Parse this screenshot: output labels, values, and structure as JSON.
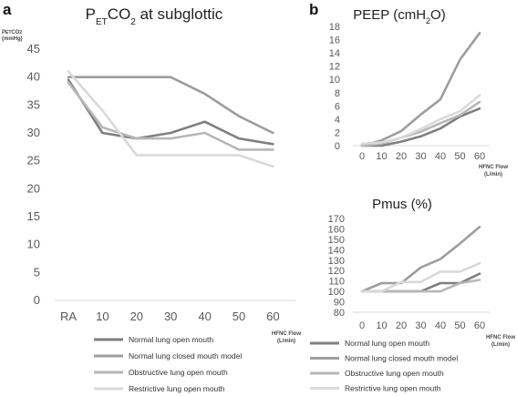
{
  "panels": {
    "a": "a",
    "b": "b"
  },
  "colors": {
    "normal_open": "#7f7f7f",
    "normal_closed": "#9d9d9d",
    "obstructive": "#b7b7b7",
    "restrictive": "#d9d9d9"
  },
  "chart_data": [
    {
      "type": "line",
      "title": "PETCO2 at subglottic",
      "title_parts": {
        "main": "P",
        "sub": "ET",
        "rest": "CO",
        "sub2": "2",
        "tail": " at subglottic"
      },
      "ylabel_lines": [
        "P",
        "ET",
        "CO",
        "2",
        "(mmHg)"
      ],
      "xlabel": "HFNC Flow (L/min)",
      "xlabel_lines": [
        "HFNC Flow",
        "(L/min)"
      ],
      "categories": [
        "RA",
        "10",
        "20",
        "30",
        "40",
        "50",
        "60"
      ],
      "ylim": [
        0,
        45
      ],
      "yticks": [
        0,
        5,
        10,
        15,
        20,
        25,
        30,
        35,
        40,
        45
      ],
      "grid": false,
      "legend_position": "bottom",
      "series": [
        {
          "name": "Normal lung open mouth",
          "color": "#7f7f7f",
          "values": [
            39.5,
            30,
            29,
            30,
            32,
            29,
            28
          ]
        },
        {
          "name": "Normal lung closed mouth model",
          "color": "#9d9d9d",
          "values": [
            40,
            40,
            40,
            40,
            37,
            33,
            30
          ]
        },
        {
          "name": "Obstructive lung open mouth",
          "color": "#b7b7b7",
          "values": [
            39,
            31,
            29,
            29,
            30,
            27,
            27
          ]
        },
        {
          "name": "Restrictive lung open mouth",
          "color": "#d9d9d9",
          "values": [
            41,
            34,
            26,
            26,
            26,
            26,
            24
          ]
        }
      ]
    },
    {
      "type": "line",
      "title": "PEEP (cmH2O)",
      "title_parts": {
        "main": "PEEP (cmH",
        "sub": "2",
        "rest": "O)"
      },
      "xlabel": "HFNC Flow (L/min)",
      "xlabel_lines": [
        "HFNC Flow",
        "(L/min)"
      ],
      "categories": [
        "0",
        "10",
        "20",
        "30",
        "40",
        "50",
        "60"
      ],
      "ylim": [
        0,
        18
      ],
      "yticks": [
        0,
        2,
        4,
        6,
        8,
        10,
        12,
        14,
        16,
        18
      ],
      "grid": false,
      "series": [
        {
          "name": "Normal lung open mouth",
          "color": "#7f7f7f",
          "values": [
            0,
            0,
            0.6,
            1.4,
            2.6,
            4.4,
            5.6
          ]
        },
        {
          "name": "Normal lung closed mouth model",
          "color": "#9d9d9d",
          "values": [
            0,
            0.8,
            2.2,
            4.7,
            7,
            13,
            17
          ]
        },
        {
          "name": "Obstructive lung open mouth",
          "color": "#b7b7b7",
          "values": [
            0,
            0.3,
            1.2,
            2.1,
            3.4,
            4.6,
            6.6
          ]
        },
        {
          "name": "Restrictive lung open mouth",
          "color": "#d9d9d9",
          "values": [
            0.3,
            0.5,
            1.2,
            2.5,
            4,
            5.2,
            7.6
          ]
        }
      ]
    },
    {
      "type": "line",
      "title": "Pmus (%)",
      "xlabel": "HFNC Flow (L/min)",
      "xlabel_lines": [
        "HFNC Flow",
        "(L/min)"
      ],
      "categories": [
        "0",
        "10",
        "20",
        "30",
        "40",
        "50",
        "60"
      ],
      "ylim": [
        80,
        170
      ],
      "yticks": [
        80,
        90,
        100,
        110,
        120,
        130,
        140,
        150,
        160,
        170
      ],
      "grid": false,
      "legend_position": "bottom",
      "series": [
        {
          "name": "Normal lung open mouth",
          "color": "#7f7f7f",
          "values": [
            100,
            100,
            100,
            100,
            108,
            108,
            117
          ]
        },
        {
          "name": "Normal lung closed mouth model",
          "color": "#9d9d9d",
          "values": [
            100,
            108,
            108,
            123,
            131,
            146,
            162
          ]
        },
        {
          "name": "Obstructive lung open mouth",
          "color": "#b7b7b7",
          "values": [
            100,
            100,
            100,
            100,
            100,
            108,
            111
          ]
        },
        {
          "name": "Restrictive lung open mouth",
          "color": "#d9d9d9",
          "values": [
            100,
            100,
            109,
            109,
            119,
            119,
            127
          ]
        }
      ]
    }
  ]
}
